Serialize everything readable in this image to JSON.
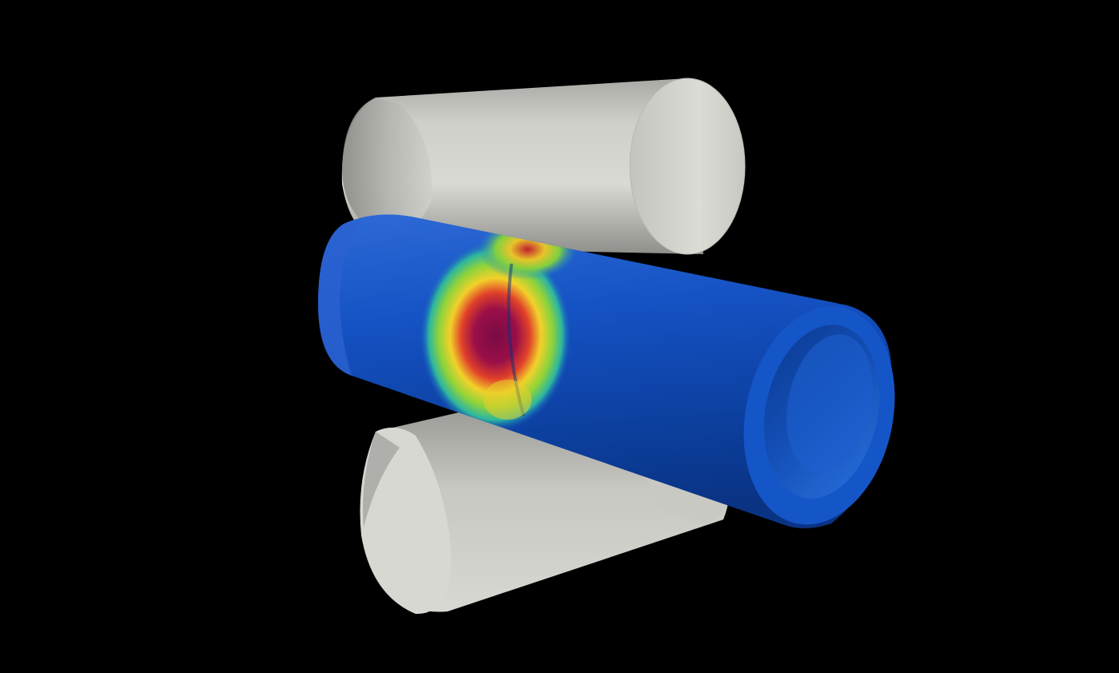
{
  "scene": {
    "background": "#000000",
    "objects": [
      {
        "name": "upper-roller",
        "kind": "cylinder",
        "color": "#c9c9c4"
      },
      {
        "name": "lower-roller",
        "kind": "cylinder",
        "color": "#c9c9c4"
      },
      {
        "name": "deformed-tube",
        "kind": "hollow-cylinder",
        "color": "#0d4fc4"
      }
    ],
    "colormap": {
      "name": "rainbow",
      "colors": [
        "#0d47c8",
        "#1f8fd0",
        "#2cc07a",
        "#b8dd2a",
        "#f2d12a",
        "#e0402a",
        "#8a0d4a"
      ]
    }
  }
}
